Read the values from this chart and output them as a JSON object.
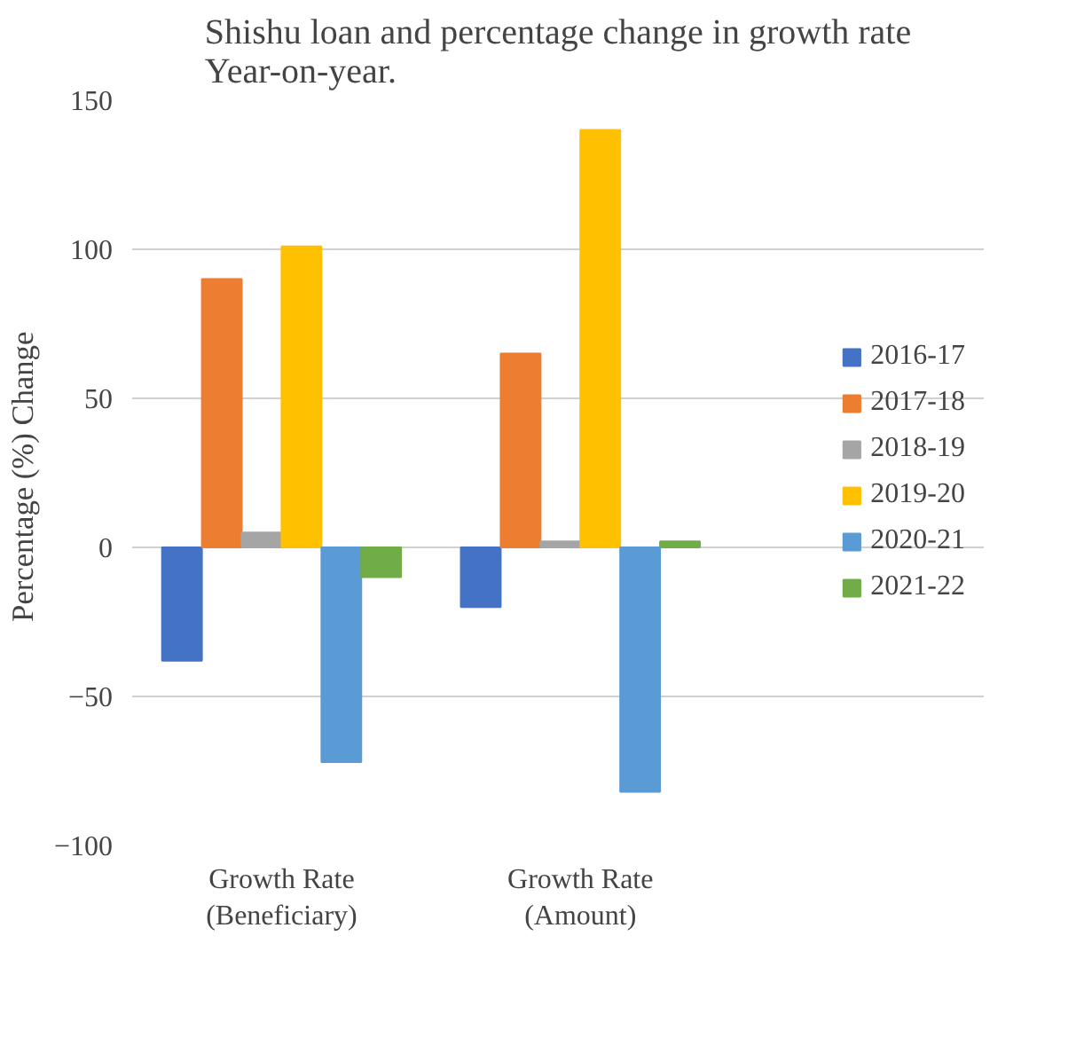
{
  "chart_data": {
    "type": "bar",
    "title": "Shishu loan and percentage change in growth rate\nYear-on-year.",
    "ylabel": "Percentage  (%) Change",
    "categories": [
      "Growth Rate\n(Beneficiary)",
      "Growth Rate\n(Amount)"
    ],
    "series": [
      {
        "name": "2016-17",
        "color": "#4472c4",
        "values": [
          -38,
          -20
        ]
      },
      {
        "name": "2017-18",
        "color": "#ed7d31",
        "values": [
          90,
          65
        ]
      },
      {
        "name": "2018-19",
        "color": "#a5a5a5",
        "values": [
          5,
          2
        ]
      },
      {
        "name": "2019-20",
        "color": "#ffc000",
        "values": [
          101,
          140
        ]
      },
      {
        "name": "2020-21",
        "color": "#5b9bd5",
        "values": [
          -72,
          -82
        ]
      },
      {
        "name": "2021-22",
        "color": "#70ad47",
        "values": [
          -10,
          2
        ]
      }
    ],
    "ylim": [
      -100,
      150
    ],
    "yticks": [
      -100,
      -50,
      0,
      50,
      100,
      150
    ],
    "grid": "y",
    "legend": "right"
  }
}
